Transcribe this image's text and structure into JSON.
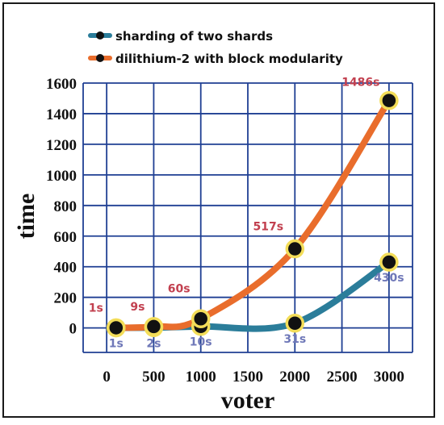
{
  "chart_data": {
    "type": "line",
    "xlabel": "voter",
    "ylabel": "time",
    "x_ticks": [
      0,
      500,
      1000,
      1500,
      2000,
      2500,
      3000
    ],
    "y_ticks": [
      0,
      200,
      400,
      600,
      800,
      1000,
      1200,
      1400,
      1600
    ],
    "xlim": [
      -250,
      3250
    ],
    "ylim": [
      -160,
      1600
    ],
    "grid": true,
    "legend_position": "top",
    "series": [
      {
        "name": "sharding of two shards",
        "color": "#2b7d9a",
        "x": [
          100,
          500,
          1000,
          2000,
          3000
        ],
        "y": [
          1,
          2,
          10,
          31,
          430
        ],
        "labels": [
          "1s",
          "2s",
          "10s",
          "31s",
          "430s"
        ],
        "label_color": "#6f78b8"
      },
      {
        "name": "dilithium-2 with block modularity",
        "color": "#e96d2c",
        "x": [
          100,
          500,
          1000,
          2000,
          3000
        ],
        "y": [
          1,
          9,
          60,
          517,
          1486
        ],
        "labels": [
          "1s",
          "9s",
          "60s",
          "517s",
          "1486s"
        ],
        "label_color": "#c2404f"
      }
    ]
  }
}
